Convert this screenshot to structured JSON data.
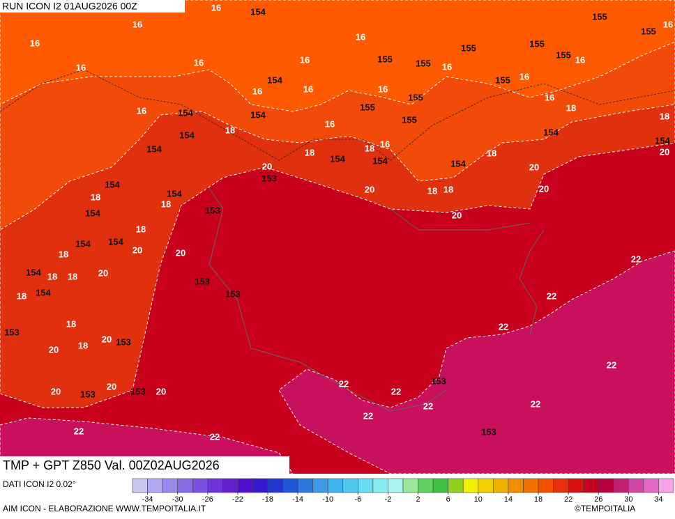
{
  "run_label": "RUN ICON I2 01AUG2026 00Z",
  "map_title": "TMP + GPT Z850 Val. 00Z02AUG2026",
  "source_label": "DATI ICON I2 0.02°",
  "credit_label": "AIM ICON - ELABORAZIONE WWW.TEMPOITALIA.IT",
  "copyright_label": "©TEMPOITALIA",
  "contour_labels": [
    "16",
    "154",
    "16",
    "16",
    "16",
    "16",
    "16",
    "155",
    "155",
    "16",
    "16",
    "155",
    "155",
    "155",
    "16",
    "155",
    "155",
    "16",
    "154",
    "16",
    "16",
    "16",
    "155",
    "155",
    "16",
    "155",
    "16",
    "16",
    "154",
    "154",
    "16",
    "155",
    "18",
    "18",
    "18",
    "154",
    "154",
    "154",
    "20",
    "154",
    "18",
    "18",
    "16",
    "154",
    "154",
    "18",
    "154",
    "20",
    "153",
    "20",
    "154",
    "154",
    "20",
    "18",
    "18",
    "20",
    "18",
    "18",
    "154",
    "153",
    "20",
    "18",
    "154",
    "154",
    "20",
    "18",
    "20",
    "22",
    "154",
    "18",
    "18",
    "20",
    "153",
    "154",
    "18",
    "153",
    "22",
    "18",
    "153",
    "22",
    "20",
    "153",
    "18",
    "20",
    "22",
    "153",
    "22",
    "22",
    "20",
    "20",
    "153",
    "153",
    "20",
    "22",
    "22",
    "22",
    "22",
    "22",
    "153"
  ],
  "colorbar": {
    "ticks": [
      -34,
      -30,
      -26,
      -22,
      -18,
      -14,
      -10,
      -6,
      -2,
      2,
      6,
      10,
      14,
      18,
      22,
      26,
      30,
      34
    ],
    "colors": [
      "#c8c8f0",
      "#b0a8f0",
      "#9a88ec",
      "#8a6ce6",
      "#7a50e0",
      "#6c34d8",
      "#6420d0",
      "#5010d0",
      "#3818d0",
      "#2038d0",
      "#2058d8",
      "#3078e0",
      "#4098e8",
      "#40b4f0",
      "#50c8f0",
      "#68dcf2",
      "#88ecf2",
      "#a8f4f0",
      "#98e898",
      "#60d060",
      "#40c040",
      "#90d020",
      "#f0f000",
      "#f0d000",
      "#f0b000",
      "#f09000",
      "#f07000",
      "#f05000",
      "#e83010",
      "#d81010",
      "#c80020",
      "#b80040",
      "#c02070",
      "#d048a8",
      "#e468c8",
      "#f8a0e8"
    ]
  }
}
